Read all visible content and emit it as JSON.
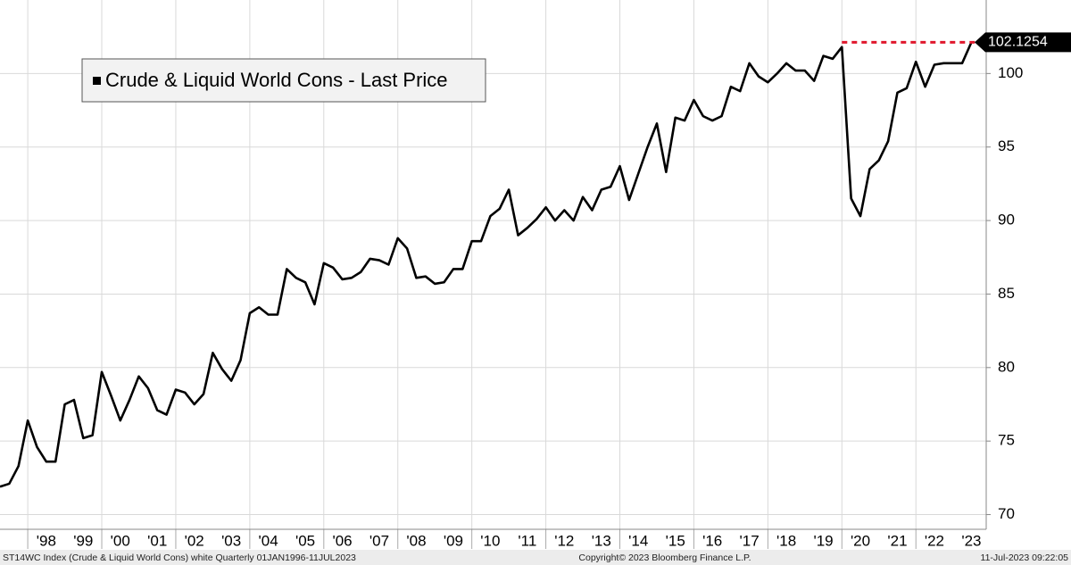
{
  "chart_data": {
    "type": "line",
    "x": [
      1997.25,
      1997.5,
      1997.75,
      1998,
      1998.25,
      1998.5,
      1998.75,
      1999,
      1999.25,
      1999.5,
      1999.75,
      2000,
      2000.25,
      2000.5,
      2000.75,
      2001,
      2001.25,
      2001.5,
      2001.75,
      2002,
      2002.25,
      2002.5,
      2002.75,
      2003,
      2003.25,
      2003.5,
      2003.75,
      2004,
      2004.25,
      2004.5,
      2004.75,
      2005,
      2005.25,
      2005.5,
      2005.75,
      2006,
      2006.25,
      2006.5,
      2006.75,
      2007,
      2007.25,
      2007.5,
      2007.75,
      2008,
      2008.25,
      2008.5,
      2008.75,
      2009,
      2009.25,
      2009.5,
      2009.75,
      2010,
      2010.25,
      2010.5,
      2010.75,
      2011,
      2011.25,
      2011.5,
      2011.75,
      2012,
      2012.25,
      2012.5,
      2012.75,
      2013,
      2013.25,
      2013.5,
      2013.75,
      2014,
      2014.25,
      2014.5,
      2014.75,
      2015,
      2015.25,
      2015.5,
      2015.75,
      2016,
      2016.25,
      2016.5,
      2016.75,
      2017,
      2017.25,
      2017.5,
      2017.75,
      2018,
      2018.25,
      2018.5,
      2018.75,
      2019,
      2019.25,
      2019.5,
      2019.75,
      2020,
      2020.25,
      2020.5,
      2020.75,
      2021,
      2021.25,
      2021.5,
      2021.75,
      2022,
      2022.25,
      2022.5,
      2022.75,
      2023,
      2023.25,
      2023.5
    ],
    "series": [
      {
        "name": "Crude & Liquid World Cons - Last Price",
        "color": "#000000",
        "values": [
          71.9,
          72.1,
          73.3,
          76.4,
          74.6,
          73.6,
          73.6,
          77.5,
          77.8,
          75.2,
          75.4,
          79.7,
          78.1,
          76.4,
          77.8,
          79.4,
          78.6,
          77.1,
          76.8,
          78.5,
          78.3,
          77.5,
          78.2,
          81.0,
          79.9,
          79.1,
          80.5,
          83.7,
          84.1,
          83.6,
          83.6,
          86.7,
          86.1,
          85.8,
          84.3,
          87.1,
          86.8,
          86.0,
          86.1,
          86.5,
          87.4,
          87.3,
          87.0,
          88.8,
          88.1,
          86.1,
          86.2,
          85.7,
          85.8,
          86.7,
          86.7,
          88.6,
          88.6,
          90.3,
          90.8,
          92.1,
          89.0,
          89.5,
          90.1,
          90.9,
          90.0,
          90.7,
          90.0,
          91.6,
          90.7,
          92.1,
          92.3,
          93.7,
          91.4,
          93.2,
          95.0,
          96.6,
          93.3,
          97.0,
          96.8,
          98.2,
          97.1,
          96.8,
          97.1,
          99.1,
          98.8,
          100.7,
          99.8,
          99.4,
          100.0,
          100.7,
          100.2,
          100.2,
          99.5,
          101.2,
          101.0,
          101.8,
          91.5,
          90.3,
          93.5,
          94.1,
          95.4,
          98.7,
          99.0,
          100.8,
          99.1,
          100.6,
          100.7,
          100.7,
          100.7,
          102.1254
        ]
      }
    ],
    "xlim": [
      1997.25,
      2023.9
    ],
    "ylim": [
      69,
      105
    ],
    "yticks": [
      70,
      75,
      80,
      85,
      90,
      95,
      100
    ],
    "xticks": [
      {
        "value": 1998.5,
        "label": "'98"
      },
      {
        "value": 1999.5,
        "label": "'99"
      },
      {
        "value": 2000.5,
        "label": "'00"
      },
      {
        "value": 2001.5,
        "label": "'01"
      },
      {
        "value": 2002.5,
        "label": "'02"
      },
      {
        "value": 2003.5,
        "label": "'03"
      },
      {
        "value": 2004.5,
        "label": "'04"
      },
      {
        "value": 2005.5,
        "label": "'05"
      },
      {
        "value": 2006.5,
        "label": "'06"
      },
      {
        "value": 2007.5,
        "label": "'07"
      },
      {
        "value": 2008.5,
        "label": "'08"
      },
      {
        "value": 2009.5,
        "label": "'09"
      },
      {
        "value": 2010.5,
        "label": "'10"
      },
      {
        "value": 2011.5,
        "label": "'11"
      },
      {
        "value": 2012.5,
        "label": "'12"
      },
      {
        "value": 2013.5,
        "label": "'13"
      },
      {
        "value": 2014.5,
        "label": "'14"
      },
      {
        "value": 2015.5,
        "label": "'15"
      },
      {
        "value": 2016.5,
        "label": "'16"
      },
      {
        "value": 2017.5,
        "label": "'17"
      },
      {
        "value": 2018.5,
        "label": "'18"
      },
      {
        "value": 2019.5,
        "label": "'19"
      },
      {
        "value": 2020.5,
        "label": "'20"
      },
      {
        "value": 2021.5,
        "label": "'21"
      },
      {
        "value": 2022.5,
        "label": "'22"
      },
      {
        "value": 2023.5,
        "label": "'23"
      }
    ],
    "xgrid": [
      1998,
      2000,
      2002,
      2004,
      2006,
      2008,
      2010,
      2012,
      2014,
      2016,
      2018,
      2020,
      2022
    ],
    "grid": true,
    "reference_color": "#e0182d",
    "footer": [
      "ST14WC Index (Crude & Liquid World Cons) white  Quarterly 01JAN1996-11JUL2023",
      "Copyright© 2023 Bloomberg Finance L.P.",
      "11-Jul-2023 09:22:05"
    ]
  }
}
